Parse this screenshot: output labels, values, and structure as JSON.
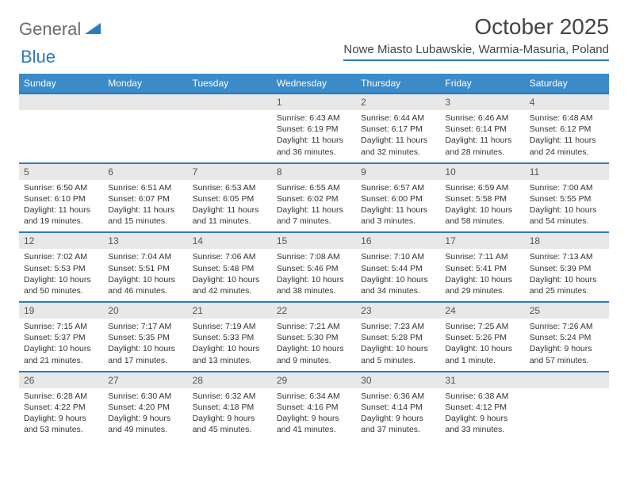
{
  "logo": {
    "word1": "General",
    "word2": "Blue"
  },
  "title": "October 2025",
  "location": "Nowe Miasto Lubawskie, Warmia-Masuria, Poland",
  "colors": {
    "header_bg": "#3b8bc9",
    "accent_line": "#2a7bbf",
    "daynum_bg": "#e8e8e8",
    "text": "#333333"
  },
  "weekdays": [
    "Sunday",
    "Monday",
    "Tuesday",
    "Wednesday",
    "Thursday",
    "Friday",
    "Saturday"
  ],
  "weeks": [
    [
      {
        "empty": true
      },
      {
        "empty": true
      },
      {
        "empty": true
      },
      {
        "day": "1",
        "sunrise": "Sunrise: 6:43 AM",
        "sunset": "Sunset: 6:19 PM",
        "dl1": "Daylight: 11 hours",
        "dl2": "and 36 minutes."
      },
      {
        "day": "2",
        "sunrise": "Sunrise: 6:44 AM",
        "sunset": "Sunset: 6:17 PM",
        "dl1": "Daylight: 11 hours",
        "dl2": "and 32 minutes."
      },
      {
        "day": "3",
        "sunrise": "Sunrise: 6:46 AM",
        "sunset": "Sunset: 6:14 PM",
        "dl1": "Daylight: 11 hours",
        "dl2": "and 28 minutes."
      },
      {
        "day": "4",
        "sunrise": "Sunrise: 6:48 AM",
        "sunset": "Sunset: 6:12 PM",
        "dl1": "Daylight: 11 hours",
        "dl2": "and 24 minutes."
      }
    ],
    [
      {
        "day": "5",
        "sunrise": "Sunrise: 6:50 AM",
        "sunset": "Sunset: 6:10 PM",
        "dl1": "Daylight: 11 hours",
        "dl2": "and 19 minutes."
      },
      {
        "day": "6",
        "sunrise": "Sunrise: 6:51 AM",
        "sunset": "Sunset: 6:07 PM",
        "dl1": "Daylight: 11 hours",
        "dl2": "and 15 minutes."
      },
      {
        "day": "7",
        "sunrise": "Sunrise: 6:53 AM",
        "sunset": "Sunset: 6:05 PM",
        "dl1": "Daylight: 11 hours",
        "dl2": "and 11 minutes."
      },
      {
        "day": "8",
        "sunrise": "Sunrise: 6:55 AM",
        "sunset": "Sunset: 6:02 PM",
        "dl1": "Daylight: 11 hours",
        "dl2": "and 7 minutes."
      },
      {
        "day": "9",
        "sunrise": "Sunrise: 6:57 AM",
        "sunset": "Sunset: 6:00 PM",
        "dl1": "Daylight: 11 hours",
        "dl2": "and 3 minutes."
      },
      {
        "day": "10",
        "sunrise": "Sunrise: 6:59 AM",
        "sunset": "Sunset: 5:58 PM",
        "dl1": "Daylight: 10 hours",
        "dl2": "and 58 minutes."
      },
      {
        "day": "11",
        "sunrise": "Sunrise: 7:00 AM",
        "sunset": "Sunset: 5:55 PM",
        "dl1": "Daylight: 10 hours",
        "dl2": "and 54 minutes."
      }
    ],
    [
      {
        "day": "12",
        "sunrise": "Sunrise: 7:02 AM",
        "sunset": "Sunset: 5:53 PM",
        "dl1": "Daylight: 10 hours",
        "dl2": "and 50 minutes."
      },
      {
        "day": "13",
        "sunrise": "Sunrise: 7:04 AM",
        "sunset": "Sunset: 5:51 PM",
        "dl1": "Daylight: 10 hours",
        "dl2": "and 46 minutes."
      },
      {
        "day": "14",
        "sunrise": "Sunrise: 7:06 AM",
        "sunset": "Sunset: 5:48 PM",
        "dl1": "Daylight: 10 hours",
        "dl2": "and 42 minutes."
      },
      {
        "day": "15",
        "sunrise": "Sunrise: 7:08 AM",
        "sunset": "Sunset: 5:46 PM",
        "dl1": "Daylight: 10 hours",
        "dl2": "and 38 minutes."
      },
      {
        "day": "16",
        "sunrise": "Sunrise: 7:10 AM",
        "sunset": "Sunset: 5:44 PM",
        "dl1": "Daylight: 10 hours",
        "dl2": "and 34 minutes."
      },
      {
        "day": "17",
        "sunrise": "Sunrise: 7:11 AM",
        "sunset": "Sunset: 5:41 PM",
        "dl1": "Daylight: 10 hours",
        "dl2": "and 29 minutes."
      },
      {
        "day": "18",
        "sunrise": "Sunrise: 7:13 AM",
        "sunset": "Sunset: 5:39 PM",
        "dl1": "Daylight: 10 hours",
        "dl2": "and 25 minutes."
      }
    ],
    [
      {
        "day": "19",
        "sunrise": "Sunrise: 7:15 AM",
        "sunset": "Sunset: 5:37 PM",
        "dl1": "Daylight: 10 hours",
        "dl2": "and 21 minutes."
      },
      {
        "day": "20",
        "sunrise": "Sunrise: 7:17 AM",
        "sunset": "Sunset: 5:35 PM",
        "dl1": "Daylight: 10 hours",
        "dl2": "and 17 minutes."
      },
      {
        "day": "21",
        "sunrise": "Sunrise: 7:19 AM",
        "sunset": "Sunset: 5:33 PM",
        "dl1": "Daylight: 10 hours",
        "dl2": "and 13 minutes."
      },
      {
        "day": "22",
        "sunrise": "Sunrise: 7:21 AM",
        "sunset": "Sunset: 5:30 PM",
        "dl1": "Daylight: 10 hours",
        "dl2": "and 9 minutes."
      },
      {
        "day": "23",
        "sunrise": "Sunrise: 7:23 AM",
        "sunset": "Sunset: 5:28 PM",
        "dl1": "Daylight: 10 hours",
        "dl2": "and 5 minutes."
      },
      {
        "day": "24",
        "sunrise": "Sunrise: 7:25 AM",
        "sunset": "Sunset: 5:26 PM",
        "dl1": "Daylight: 10 hours",
        "dl2": "and 1 minute."
      },
      {
        "day": "25",
        "sunrise": "Sunrise: 7:26 AM",
        "sunset": "Sunset: 5:24 PM",
        "dl1": "Daylight: 9 hours",
        "dl2": "and 57 minutes."
      }
    ],
    [
      {
        "day": "26",
        "sunrise": "Sunrise: 6:28 AM",
        "sunset": "Sunset: 4:22 PM",
        "dl1": "Daylight: 9 hours",
        "dl2": "and 53 minutes."
      },
      {
        "day": "27",
        "sunrise": "Sunrise: 6:30 AM",
        "sunset": "Sunset: 4:20 PM",
        "dl1": "Daylight: 9 hours",
        "dl2": "and 49 minutes."
      },
      {
        "day": "28",
        "sunrise": "Sunrise: 6:32 AM",
        "sunset": "Sunset: 4:18 PM",
        "dl1": "Daylight: 9 hours",
        "dl2": "and 45 minutes."
      },
      {
        "day": "29",
        "sunrise": "Sunrise: 6:34 AM",
        "sunset": "Sunset: 4:16 PM",
        "dl1": "Daylight: 9 hours",
        "dl2": "and 41 minutes."
      },
      {
        "day": "30",
        "sunrise": "Sunrise: 6:36 AM",
        "sunset": "Sunset: 4:14 PM",
        "dl1": "Daylight: 9 hours",
        "dl2": "and 37 minutes."
      },
      {
        "day": "31",
        "sunrise": "Sunrise: 6:38 AM",
        "sunset": "Sunset: 4:12 PM",
        "dl1": "Daylight: 9 hours",
        "dl2": "and 33 minutes."
      },
      {
        "empty": true
      }
    ]
  ]
}
